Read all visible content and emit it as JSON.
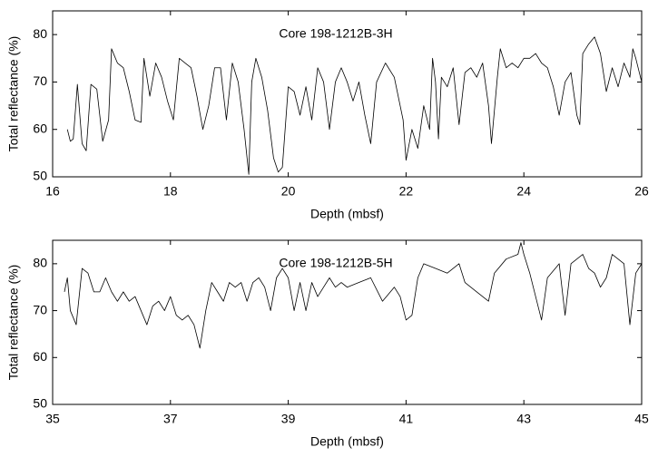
{
  "chart_data": [
    {
      "type": "line",
      "title": "Core 198-1212B-3H",
      "x_label": "Depth (mbsf)",
      "y_label": "Total reflectance (%)",
      "color": "#000000",
      "xlim": [
        16,
        26
      ],
      "ylim": [
        50,
        85
      ],
      "xticks": [
        16,
        18,
        20,
        22,
        24,
        26
      ],
      "yticks": [
        50,
        60,
        70,
        80
      ],
      "x": [
        16.25,
        16.3,
        16.35,
        16.42,
        16.5,
        16.57,
        16.65,
        16.75,
        16.85,
        16.95,
        17.0,
        17.1,
        17.2,
        17.3,
        17.4,
        17.5,
        17.55,
        17.65,
        17.75,
        17.85,
        17.95,
        18.05,
        18.15,
        18.25,
        18.35,
        18.45,
        18.55,
        18.65,
        18.75,
        18.85,
        18.95,
        19.05,
        19.15,
        19.25,
        19.33,
        19.38,
        19.45,
        19.55,
        19.65,
        19.75,
        19.83,
        19.9,
        20.0,
        20.1,
        20.2,
        20.3,
        20.4,
        20.5,
        20.6,
        20.7,
        20.8,
        20.9,
        21.0,
        21.1,
        21.2,
        21.3,
        21.4,
        21.5,
        21.65,
        21.8,
        21.95,
        22.0,
        22.1,
        22.2,
        22.3,
        22.4,
        22.45,
        22.5,
        22.55,
        22.6,
        22.7,
        22.8,
        22.9,
        23.0,
        23.1,
        23.2,
        23.3,
        23.4,
        23.45,
        23.55,
        23.6,
        23.7,
        23.8,
        23.9,
        24.0,
        24.1,
        24.2,
        24.3,
        24.4,
        24.5,
        24.6,
        24.7,
        24.8,
        24.9,
        24.95,
        25.0,
        25.1,
        25.2,
        25.3,
        25.4,
        25.5,
        25.6,
        25.7,
        25.8,
        25.85,
        25.9,
        26.0
      ],
      "values": [
        60,
        57.5,
        58,
        69.5,
        57,
        55.5,
        69.5,
        68.5,
        57.5,
        62,
        77,
        74,
        73,
        68,
        62,
        61.5,
        75,
        67,
        74,
        71,
        66,
        62,
        75,
        74,
        73,
        67,
        60,
        65,
        73,
        73,
        62,
        74,
        70,
        60,
        50.5,
        70,
        75,
        71,
        64,
        54,
        51,
        52,
        69,
        68,
        63,
        69,
        62,
        73,
        70,
        60,
        70,
        73,
        70,
        66,
        70,
        63,
        57,
        70,
        74,
        71,
        62,
        53.5,
        60,
        56,
        65,
        60,
        75,
        70,
        58,
        71,
        69,
        73,
        61,
        72,
        73,
        71,
        74,
        65,
        57,
        71,
        77,
        73,
        74,
        73,
        75,
        75,
        76,
        74,
        73,
        69,
        63,
        70,
        72,
        63,
        61,
        76,
        78,
        79.5,
        76,
        68,
        73,
        69,
        74,
        71,
        77,
        75,
        70
      ]
    },
    {
      "type": "line",
      "title": "Core 198-1212B-5H",
      "x_label": "Depth (mbsf)",
      "y_label": "Total reflectance (%)",
      "color": "#000000",
      "xlim": [
        35,
        45
      ],
      "ylim": [
        50,
        85
      ],
      "xticks": [
        35,
        37,
        39,
        41,
        43,
        45
      ],
      "yticks": [
        50,
        60,
        70,
        80
      ],
      "x": [
        35.2,
        35.25,
        35.3,
        35.4,
        35.5,
        35.6,
        35.7,
        35.8,
        35.9,
        36.0,
        36.1,
        36.2,
        36.3,
        36.4,
        36.5,
        36.6,
        36.7,
        36.8,
        36.9,
        37.0,
        37.1,
        37.2,
        37.3,
        37.4,
        37.5,
        37.6,
        37.7,
        37.8,
        37.9,
        38.0,
        38.1,
        38.2,
        38.3,
        38.4,
        38.5,
        38.6,
        38.7,
        38.8,
        38.9,
        39.0,
        39.1,
        39.2,
        39.3,
        39.4,
        39.5,
        39.6,
        39.7,
        39.8,
        39.9,
        40.0,
        40.2,
        40.4,
        40.6,
        40.8,
        40.9,
        41.0,
        41.1,
        41.2,
        41.3,
        41.5,
        41.7,
        41.9,
        42.0,
        42.2,
        42.4,
        42.5,
        42.7,
        42.9,
        42.95,
        43.0,
        43.1,
        43.3,
        43.4,
        43.6,
        43.7,
        43.8,
        44.0,
        44.1,
        44.2,
        44.3,
        44.4,
        44.5,
        44.7,
        44.8,
        44.9,
        45.0
      ],
      "values": [
        74,
        77,
        70,
        67,
        79,
        78,
        74,
        74,
        77,
        74,
        72,
        74,
        72,
        73,
        70,
        67,
        71,
        72,
        70,
        73,
        69,
        68,
        69,
        67,
        62,
        70,
        76,
        74,
        72,
        76,
        75,
        76,
        72,
        76,
        77,
        75,
        70,
        77,
        79,
        77,
        70,
        76,
        70,
        76,
        73,
        75,
        77,
        75,
        76,
        75,
        76,
        77,
        72,
        75,
        73,
        68,
        69,
        77,
        80,
        79,
        78,
        80,
        76,
        74,
        72,
        78,
        81,
        82,
        84.5,
        82,
        78,
        68,
        77,
        80,
        69,
        80,
        82,
        79,
        78,
        75,
        77,
        82,
        80,
        67,
        78,
        80
      ]
    }
  ]
}
